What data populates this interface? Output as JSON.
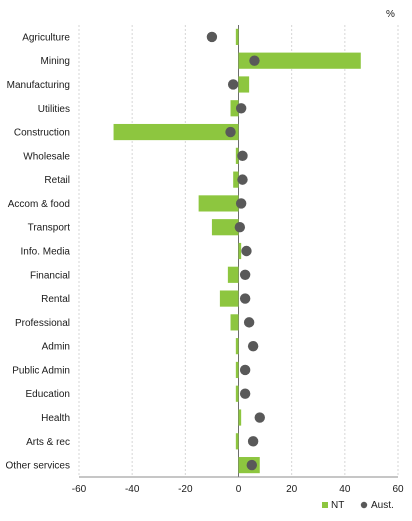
{
  "chart_data": {
    "type": "bar",
    "orientation": "horizontal",
    "unit": "%",
    "categories": [
      "Agriculture",
      "Mining",
      "Manufacturing",
      "Utilities",
      "Construction",
      "Wholesale",
      "Retail",
      "Accom & food",
      "Transport",
      "Info. Media",
      "Financial",
      "Rental",
      "Professional",
      "Admin",
      "Public Admin",
      "Education",
      "Health",
      "Arts & rec",
      "Other services"
    ],
    "series": [
      {
        "name": "NT",
        "kind": "bar",
        "color": "#8dc63f",
        "values": [
          -1,
          46,
          4,
          -3,
          -47,
          -1,
          -2,
          -15,
          -10,
          1,
          -4,
          -7,
          -3,
          -1,
          -1,
          -1,
          1,
          -1,
          8
        ]
      },
      {
        "name": "Aust.",
        "kind": "dot",
        "color": "#595959",
        "values": [
          -10,
          6,
          -2,
          1,
          -3,
          1.5,
          1.5,
          1,
          0.5,
          3,
          2.5,
          2.5,
          4,
          5.5,
          2.5,
          2.5,
          8,
          5.5,
          5
        ]
      }
    ],
    "xlim": [
      -60,
      60
    ],
    "xticks": [
      -60,
      -40,
      -20,
      0,
      20,
      40,
      60
    ],
    "grid": "vertical",
    "legend": "bottom-right"
  }
}
